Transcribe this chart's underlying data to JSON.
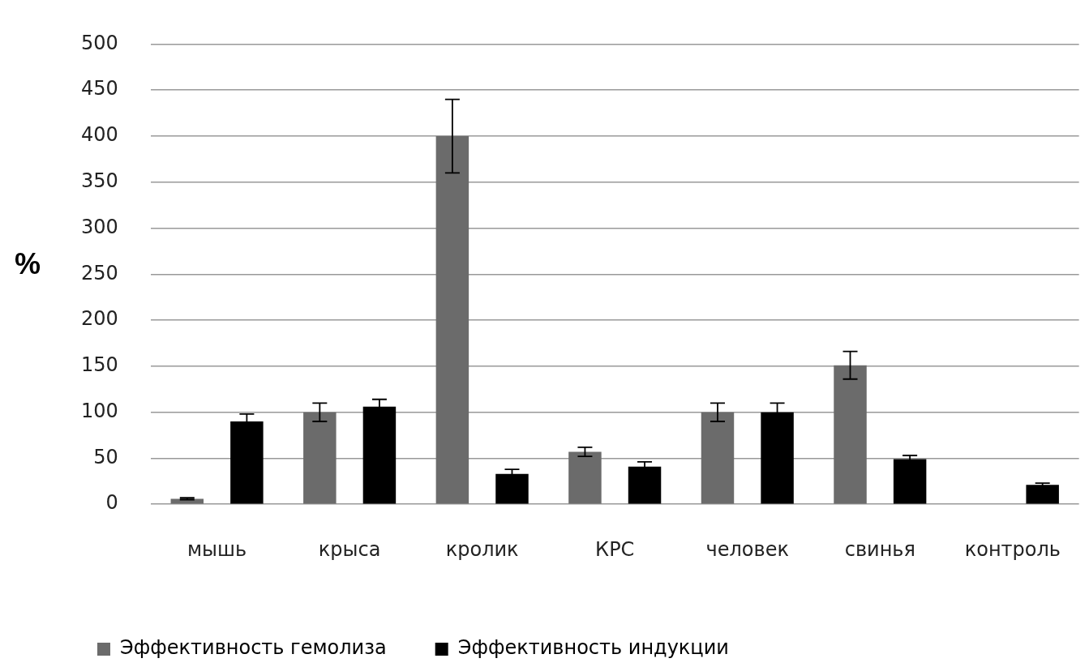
{
  "chart_data": {
    "type": "bar",
    "ylabel": "%",
    "categories": [
      "мышь",
      "крыса",
      "кролик",
      "КРС",
      "человек",
      "свинья",
      "контроль"
    ],
    "series": [
      {
        "name": "Эффективность гемолиза",
        "color": "#6b6b6b",
        "values": [
          6,
          100,
          400,
          57,
          100,
          151,
          null
        ],
        "errors": [
          1,
          10,
          40,
          5,
          10,
          15,
          null
        ]
      },
      {
        "name": "Эффективность индукции",
        "color": "#000000",
        "values": [
          90,
          106,
          33,
          41,
          100,
          49,
          21
        ],
        "errors": [
          8,
          8,
          5,
          5,
          10,
          4,
          2
        ]
      }
    ],
    "ylim": [
      0,
      500
    ],
    "yticks": [
      0,
      50,
      100,
      150,
      200,
      250,
      300,
      350,
      400,
      450,
      500
    ],
    "grid": "y",
    "legend": "bottom"
  }
}
